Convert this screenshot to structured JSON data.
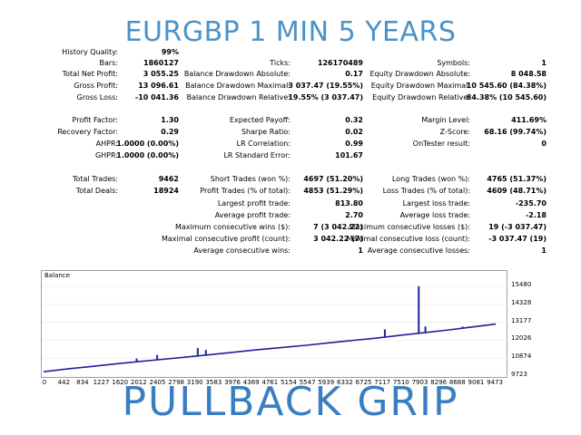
{
  "title": "EURGBP 1 MIN 5 YEARS",
  "brand": "PULLBACK GRIP",
  "colors": {
    "title": "#4a93c8",
    "brand": "#3a7ec2",
    "balance_line": "#1f1f9e"
  },
  "stats": {
    "col1": [
      {
        "label": "History Quality:",
        "value": "99%"
      },
      {
        "label": "Bars:",
        "value": "1860127"
      },
      {
        "label": "Total Net Profit:",
        "value": "3 055.25"
      },
      {
        "label": "Gross Profit:",
        "value": "13 096.61"
      },
      {
        "label": "Gross Loss:",
        "value": "-10 041.36"
      },
      {
        "label": "Profit Factor:",
        "value": "1.30"
      },
      {
        "label": "Recovery Factor:",
        "value": "0.29"
      },
      {
        "label": "AHPR:",
        "value": "1.0000 (0.00%)"
      },
      {
        "label": "GHPR:",
        "value": "1.0000 (0.00%)"
      },
      {
        "label": "Total Trades:",
        "value": "9462"
      },
      {
        "label": "Total Deals:",
        "value": "18924"
      }
    ],
    "col2": [
      {
        "label": "Ticks:",
        "value": "126170489"
      },
      {
        "label": "Balance Drawdown Absolute:",
        "value": "0.17"
      },
      {
        "label": "Balance Drawdown Maximal:",
        "value": "3 037.47 (19.55%)"
      },
      {
        "label": "Balance Drawdown Relative:",
        "value": "19.55% (3 037.47)"
      },
      {
        "label": "Expected Payoff:",
        "value": "0.32"
      },
      {
        "label": "Sharpe Ratio:",
        "value": "0.02"
      },
      {
        "label": "LR Correlation:",
        "value": "0.99"
      },
      {
        "label": "LR Standard Error:",
        "value": "101.67"
      },
      {
        "label": "Short Trades (won %):",
        "value": "4697 (51.20%)"
      },
      {
        "label": "Profit Trades (% of total):",
        "value": "4853 (51.29%)"
      },
      {
        "label": "Largest profit trade:",
        "value": "813.80"
      },
      {
        "label": "Average profit trade:",
        "value": "2.70"
      },
      {
        "label": "Maximum consecutive wins ($):",
        "value": "7 (3 042.22)"
      },
      {
        "label": "Maximal consecutive profit (count):",
        "value": "3 042.22 (7)"
      },
      {
        "label": "Average consecutive wins:",
        "value": "1"
      }
    ],
    "col3": [
      {
        "label": "Symbols:",
        "value": "1"
      },
      {
        "label": "Equity Drawdown Absolute:",
        "value": "8 048.58"
      },
      {
        "label": "Equity Drawdown Maximal:",
        "value": "10 545.60 (84.38%)"
      },
      {
        "label": "Equity Drawdown Relative:",
        "value": "84.38% (10 545.60)"
      },
      {
        "label": "Margin Level:",
        "value": "411.69%"
      },
      {
        "label": "Z-Score:",
        "value": "68.16 (99.74%)"
      },
      {
        "label": "OnTester result:",
        "value": "0"
      },
      {
        "label": "Long Trades (won %):",
        "value": "4765 (51.37%)"
      },
      {
        "label": "Loss Trades (% of total):",
        "value": "4609 (48.71%)"
      },
      {
        "label": "Largest loss trade:",
        "value": "-235.70"
      },
      {
        "label": "Average loss trade:",
        "value": "-2.18"
      },
      {
        "label": "Maximum consecutive losses ($):",
        "value": "19 (-3 037.47)"
      },
      {
        "label": "Maximal consecutive loss (count):",
        "value": "-3 037.47 (19)"
      },
      {
        "label": "Average consecutive losses:",
        "value": "1"
      }
    ]
  },
  "chart_data": {
    "type": "line",
    "label": "Balance",
    "x_ticks": [
      "0",
      "442",
      "834",
      "1227",
      "1620",
      "2012",
      "2405",
      "2798",
      "3190",
      "3583",
      "3976",
      "4369",
      "4761",
      "5154",
      "5547",
      "5939",
      "6332",
      "6725",
      "7117",
      "7510",
      "7903",
      "8296",
      "8688",
      "9081",
      "9473"
    ],
    "y_ticks": [
      "15480",
      "14328",
      "13177",
      "12026",
      "10874",
      "9723"
    ],
    "xlim": [
      0,
      9700
    ],
    "ylim": [
      9723,
      16000
    ],
    "series": [
      {
        "x": [
          0,
          500,
          1000,
          1500,
          2000,
          2500,
          3000,
          3500,
          4000,
          4500,
          5000,
          5500,
          6000,
          6500,
          7000,
          7500,
          8000,
          8500,
          9000,
          9473
        ],
        "y": [
          10000,
          10180,
          10340,
          10500,
          10660,
          10800,
          10950,
          11100,
          11260,
          11420,
          11560,
          11700,
          11860,
          12020,
          12170,
          12350,
          12520,
          12690,
          12880,
          13060
        ]
      }
    ],
    "spikes": [
      {
        "x": 1950,
        "y": 10850
      },
      {
        "x": 2380,
        "y": 11080
      },
      {
        "x": 3230,
        "y": 11520
      },
      {
        "x": 3400,
        "y": 11400
      },
      {
        "x": 7150,
        "y": 12720
      },
      {
        "x": 7860,
        "y": 15480
      },
      {
        "x": 8000,
        "y": 12900
      },
      {
        "x": 8780,
        "y": 12900
      }
    ]
  }
}
